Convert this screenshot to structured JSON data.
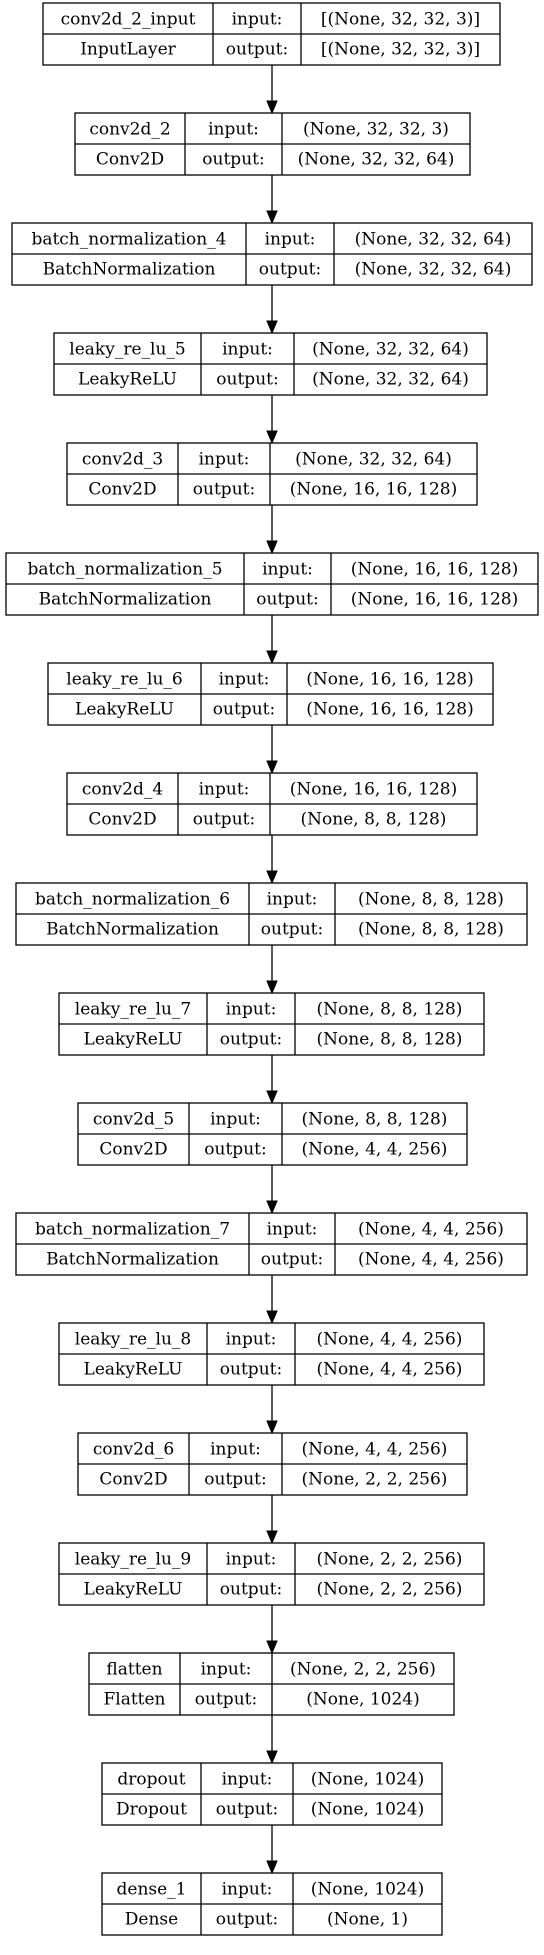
{
  "model_diagram": {
    "input_label": "input:",
    "output_label": "output:",
    "layers": [
      {
        "name": "conv2d_2_input",
        "type": "InputLayer",
        "input_shape": "[(None, 32, 32, 3)]",
        "output_shape": "[(None, 32, 32, 3)]"
      },
      {
        "name": "conv2d_2",
        "type": "Conv2D",
        "input_shape": "(None, 32, 32, 3)",
        "output_shape": "(None, 32, 32, 64)"
      },
      {
        "name": "batch_normalization_4",
        "type": "BatchNormalization",
        "input_shape": "(None, 32, 32, 64)",
        "output_shape": "(None, 32, 32, 64)"
      },
      {
        "name": "leaky_re_lu_5",
        "type": "LeakyReLU",
        "input_shape": "(None, 32, 32, 64)",
        "output_shape": "(None, 32, 32, 64)"
      },
      {
        "name": "conv2d_3",
        "type": "Conv2D",
        "input_shape": "(None, 32, 32, 64)",
        "output_shape": "(None, 16, 16, 128)"
      },
      {
        "name": "batch_normalization_5",
        "type": "BatchNormalization",
        "input_shape": "(None, 16, 16, 128)",
        "output_shape": "(None, 16, 16, 128)"
      },
      {
        "name": "leaky_re_lu_6",
        "type": "LeakyReLU",
        "input_shape": "(None, 16, 16, 128)",
        "output_shape": "(None, 16, 16, 128)"
      },
      {
        "name": "conv2d_4",
        "type": "Conv2D",
        "input_shape": "(None, 16, 16, 128)",
        "output_shape": "(None, 8, 8, 128)"
      },
      {
        "name": "batch_normalization_6",
        "type": "BatchNormalization",
        "input_shape": "(None, 8, 8, 128)",
        "output_shape": "(None, 8, 8, 128)"
      },
      {
        "name": "leaky_re_lu_7",
        "type": "LeakyReLU",
        "input_shape": "(None, 8, 8, 128)",
        "output_shape": "(None, 8, 8, 128)"
      },
      {
        "name": "conv2d_5",
        "type": "Conv2D",
        "input_shape": "(None, 8, 8, 128)",
        "output_shape": "(None, 4, 4, 256)"
      },
      {
        "name": "batch_normalization_7",
        "type": "BatchNormalization",
        "input_shape": "(None, 4, 4, 256)",
        "output_shape": "(None, 4, 4, 256)"
      },
      {
        "name": "leaky_re_lu_8",
        "type": "LeakyReLU",
        "input_shape": "(None, 4, 4, 256)",
        "output_shape": "(None, 4, 4, 256)"
      },
      {
        "name": "conv2d_6",
        "type": "Conv2D",
        "input_shape": "(None, 4, 4, 256)",
        "output_shape": "(None, 2, 2, 256)"
      },
      {
        "name": "leaky_re_lu_9",
        "type": "LeakyReLU",
        "input_shape": "(None, 2, 2, 256)",
        "output_shape": "(None, 2, 2, 256)"
      },
      {
        "name": "flatten",
        "type": "Flatten",
        "input_shape": "(None, 2, 2, 256)",
        "output_shape": "(None, 1024)"
      },
      {
        "name": "dropout",
        "type": "Dropout",
        "input_shape": "(None, 1024)",
        "output_shape": "(None, 1024)"
      },
      {
        "name": "dense_1",
        "type": "Dense",
        "input_shape": "(None, 1024)",
        "output_shape": "(None, 1)"
      }
    ]
  }
}
